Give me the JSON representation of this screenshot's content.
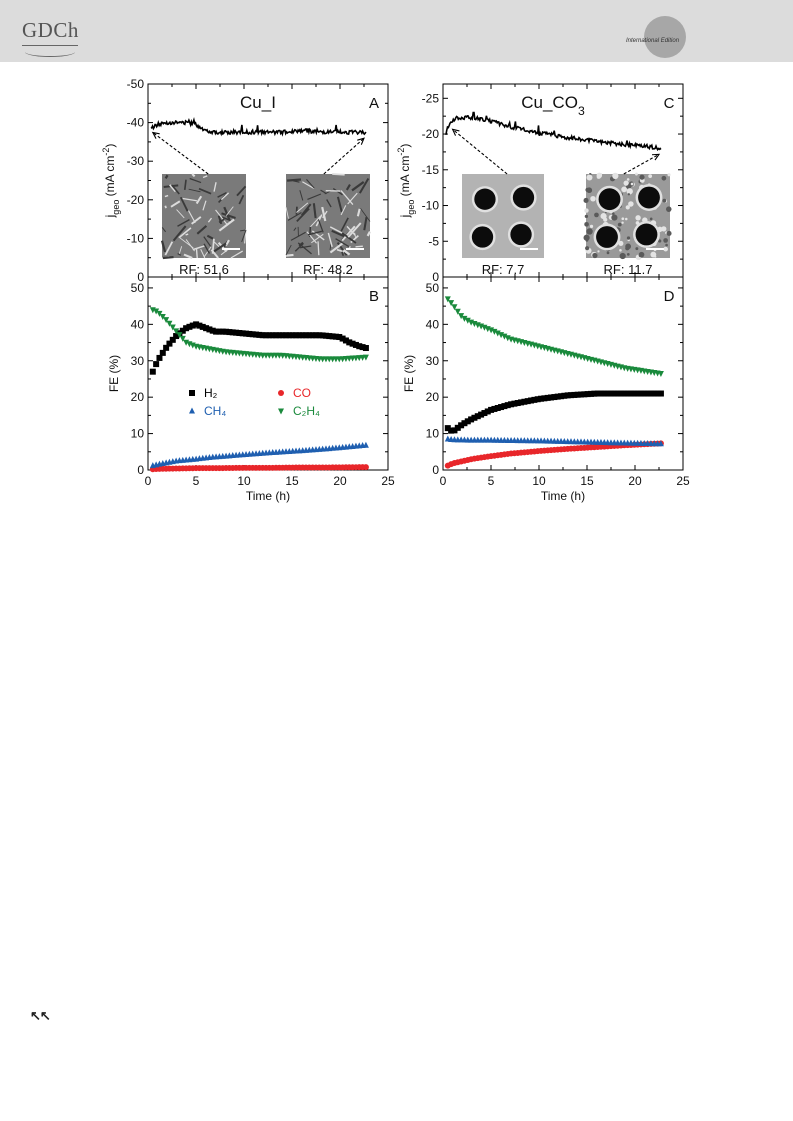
{
  "header": {
    "logo_text": "GDCh",
    "edition_label": "International Edition"
  },
  "nav": {
    "back_label": "↖↖"
  },
  "colors": {
    "H2": "#000000",
    "CO": "#e8262a",
    "CH4": "#1f5fb0",
    "C2H4": "#1a8a3c"
  },
  "chart_data": [
    {
      "id": "A",
      "type": "line",
      "title": "Cu_I",
      "panel_label": "A",
      "xlabel": "",
      "ylabel": "j_geo (mA cm^-2)",
      "ylim": [
        0,
        -50
      ],
      "yticks": [
        "-50",
        "-40",
        "-30",
        "-20",
        "-10",
        "0"
      ],
      "xlim": [
        0,
        25
      ],
      "series": [
        {
          "x": [
            0.3,
            1,
            2,
            3,
            4,
            5,
            6,
            7,
            8,
            10,
            12,
            14,
            16,
            18,
            20,
            22,
            22.7
          ],
          "values": [
            -38.5,
            -39.5,
            -40,
            -40,
            -40,
            -39.5,
            -38,
            -37.5,
            -37.5,
            -37.5,
            -37.5,
            -37.5,
            -38,
            -37.5,
            -37.5,
            -37.5,
            -37.5
          ]
        }
      ],
      "insets": [
        {
          "kind": "SEM image",
          "rf_label": "RF: 51.6",
          "points_to": [
            0.5,
            -39
          ]
        },
        {
          "kind": "SEM image",
          "rf_label": "RF: 48.2",
          "points_to": [
            22.5,
            -37.5
          ]
        }
      ]
    },
    {
      "id": "C",
      "type": "line",
      "title": "Cu_CO3",
      "panel_label": "C",
      "xlabel": "",
      "ylabel": "j_geo (mA cm^-2)",
      "ylim": [
        0,
        -27
      ],
      "yticks": [
        "-25",
        "-20",
        "-15",
        "-10",
        "-5",
        "0"
      ],
      "xlim": [
        0,
        25
      ],
      "series": [
        {
          "x": [
            0.3,
            0.7,
            1.5,
            3,
            5,
            7,
            10,
            13,
            16,
            19,
            21,
            22.7
          ],
          "values": [
            -19.8,
            -21.5,
            -22.3,
            -22.3,
            -21.8,
            -21,
            -20.2,
            -19.5,
            -19,
            -18.5,
            -18.3,
            -18
          ]
        }
      ],
      "insets": [
        {
          "kind": "SEM image",
          "rf_label": "RF: 7.7",
          "points_to": [
            1,
            -21.5
          ]
        },
        {
          "kind": "SEM image",
          "rf_label": "RF: 11.7",
          "points_to": [
            22.5,
            -18
          ]
        }
      ]
    },
    {
      "id": "B",
      "type": "scatter",
      "panel_label": "B",
      "xlabel": "Time (h)",
      "ylabel": "FE (%)",
      "ylim": [
        0,
        53
      ],
      "yticks": [
        "0",
        "10",
        "20",
        "30",
        "40",
        "50"
      ],
      "xlim": [
        0,
        25
      ],
      "xticks": [
        "0",
        "5",
        "10",
        "15",
        "20",
        "25"
      ],
      "legend": [
        {
          "series": "H2",
          "label": "H₂"
        },
        {
          "series": "CO",
          "label": "CO"
        },
        {
          "series": "CH4",
          "label": "CH₄"
        },
        {
          "series": "C2H4",
          "label": "C₂H₄"
        }
      ],
      "series": [
        {
          "key": "H2",
          "marker": "square",
          "x": [
            0.5,
            1,
            2,
            3,
            4,
            5,
            6,
            7,
            8,
            10,
            12,
            14,
            16,
            18,
            20,
            21,
            22,
            22.7
          ],
          "values": [
            27,
            30,
            34,
            37,
            39,
            40,
            39,
            38,
            38,
            37.5,
            37,
            37,
            37,
            37,
            36.5,
            35,
            34,
            33.5
          ]
        },
        {
          "key": "CO",
          "marker": "circle",
          "x": [
            0.5,
            1,
            3,
            5,
            7,
            10,
            13,
            16,
            19,
            22.7
          ],
          "values": [
            0.2,
            0.3,
            0.4,
            0.5,
            0.5,
            0.6,
            0.6,
            0.7,
            0.7,
            0.8
          ]
        },
        {
          "key": "CH4",
          "marker": "triangle-up",
          "x": [
            0.5,
            1,
            3,
            5,
            7,
            10,
            13,
            16,
            19,
            22.7
          ],
          "values": [
            1.2,
            1.5,
            2.5,
            3,
            3.6,
            4.2,
            4.8,
            5.3,
            5.9,
            6.8
          ]
        },
        {
          "key": "C2H4",
          "marker": "triangle-down",
          "x": [
            0.5,
            1,
            2,
            3,
            4,
            5,
            6,
            7,
            8,
            10,
            12,
            14,
            16,
            18,
            20,
            22.7
          ],
          "values": [
            44,
            43.5,
            41,
            38,
            35,
            34,
            33.5,
            33,
            32.5,
            32,
            31.5,
            31.5,
            31,
            30.5,
            30.5,
            31
          ]
        }
      ]
    },
    {
      "id": "D",
      "type": "scatter",
      "panel_label": "D",
      "xlabel": "Time (h)",
      "ylabel": "FE (%)",
      "ylim": [
        0,
        53
      ],
      "yticks": [
        "0",
        "10",
        "20",
        "30",
        "40",
        "50"
      ],
      "xlim": [
        0,
        25
      ],
      "xticks": [
        "0",
        "5",
        "10",
        "15",
        "20",
        "25"
      ],
      "series": [
        {
          "key": "H2",
          "marker": "square",
          "x": [
            0.5,
            1,
            2,
            3,
            5,
            7,
            10,
            13,
            16,
            19,
            22.7
          ],
          "values": [
            11.5,
            10.5,
            12.5,
            14,
            16.5,
            18,
            19.5,
            20.5,
            21,
            21,
            21
          ]
        },
        {
          "key": "CO",
          "marker": "circle",
          "x": [
            0.5,
            1,
            3,
            5,
            7,
            10,
            13,
            16,
            19,
            22.7
          ],
          "values": [
            1.2,
            1.8,
            3,
            3.8,
            4.5,
            5.2,
            5.8,
            6.3,
            6.8,
            7.3
          ]
        },
        {
          "key": "CH4",
          "marker": "triangle-up",
          "x": [
            0.5,
            1,
            3,
            5,
            7,
            10,
            13,
            16,
            19,
            22.7
          ],
          "values": [
            8.5,
            8.3,
            8.2,
            8.2,
            8.1,
            8,
            7.8,
            7.6,
            7.4,
            7.2
          ]
        },
        {
          "key": "C2H4",
          "marker": "triangle-down",
          "x": [
            0.5,
            1,
            2,
            3,
            5,
            7,
            10,
            13,
            16,
            19,
            22.7
          ],
          "values": [
            47,
            45.5,
            42,
            40.5,
            38.5,
            36,
            34,
            32,
            30,
            28,
            26.5
          ]
        }
      ]
    }
  ]
}
